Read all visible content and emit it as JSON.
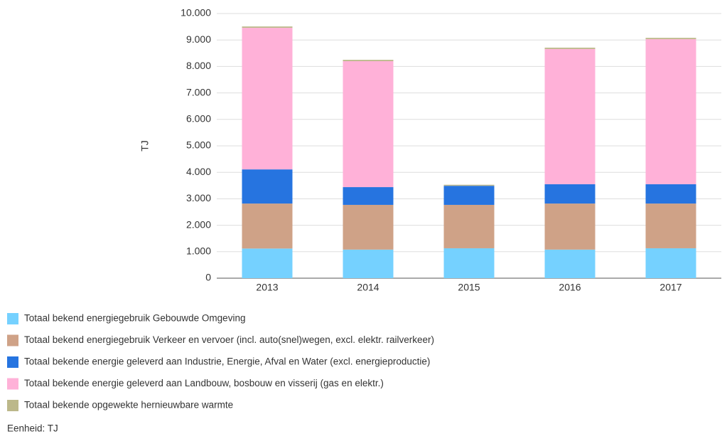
{
  "chart_data": {
    "type": "stacked_bar",
    "y_label": "TJ",
    "categories": [
      "2013",
      "2014",
      "2015",
      "2016",
      "2017"
    ],
    "series": [
      {
        "name": "Totaal bekend energiegebruik Gebouwde Omgeving",
        "color": "#75d1ff",
        "values": [
          1120,
          1080,
          1130,
          1080,
          1130
        ]
      },
      {
        "name": "Totaal bekend energiegebruik Verkeer en vervoer (incl. auto(snel)wegen, excl. elektr. railverkeer)",
        "color": "#cfa287",
        "values": [
          1700,
          1690,
          1640,
          1740,
          1690
        ]
      },
      {
        "name": "Totaal bekende energie geleverd aan Industrie, Energie, Afval en Water (excl. energieproductie)",
        "color": "#2674e0",
        "values": [
          1290,
          670,
          720,
          730,
          730
        ]
      },
      {
        "name": "Totaal bekende energie geleverd aan Landbouw, bosbouw en visserij (gas en elektr.)",
        "color": "#ffb1d8",
        "values": [
          5350,
          4760,
          0,
          5110,
          5480
        ]
      },
      {
        "name": "Totaal bekende opgewekte hernieuwbare warmte",
        "color": "#bcb88a",
        "values": [
          50,
          50,
          40,
          50,
          50
        ]
      }
    ],
    "ylim": [
      0,
      10000
    ],
    "yticks": [
      0,
      {
        "value": 1000,
        "label": "1.000"
      },
      {
        "value": 2000,
        "label": "2.000"
      },
      {
        "value": 3000,
        "label": "3.000"
      },
      {
        "value": 4000,
        "label": "4.000"
      },
      {
        "value": 5000,
        "label": "5.000"
      },
      {
        "value": 6000,
        "label": "6.000"
      },
      {
        "value": 7000,
        "label": "7.000"
      },
      {
        "value": 8000,
        "label": "8.000"
      },
      {
        "value": 9000,
        "label": "9.000"
      },
      {
        "value": 10000,
        "label": "10.000"
      }
    ],
    "grid": true,
    "legend": "bottom",
    "footnote": "Eenheid: TJ"
  }
}
